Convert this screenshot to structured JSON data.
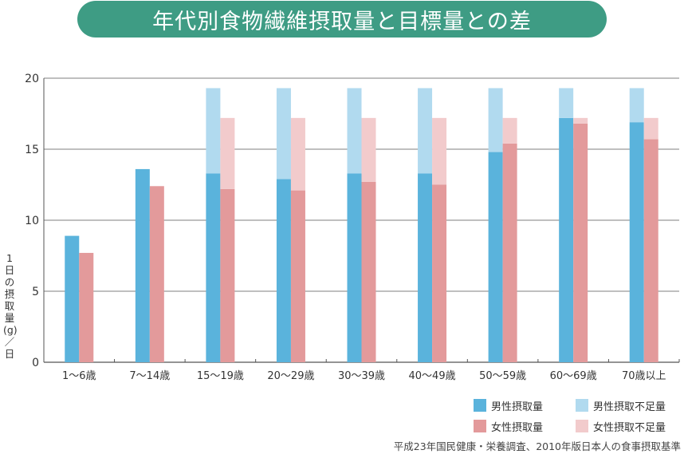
{
  "title": "年代別食物繊維摂取量と目標量との差",
  "chart_data": {
    "type": "bar",
    "title": "年代別食物繊維摂取量と目標量との差",
    "ylabel": "1日の摂取量(g)／日",
    "xlabel": "",
    "ylim": [
      0,
      20
    ],
    "yticks": [
      0,
      5,
      10,
      15,
      20
    ],
    "grid": true,
    "legend_position": "bottom-right",
    "categories": [
      "1〜6歳",
      "7〜14歳",
      "15〜19歳",
      "20〜29歳",
      "30〜39歳",
      "40〜49歳",
      "50〜59歳",
      "60〜69歳",
      "70歳以上"
    ],
    "series": [
      {
        "name": "男性摂取量",
        "color": "#5ab3dc",
        "values": [
          8.9,
          13.6,
          13.3,
          12.9,
          13.3,
          13.3,
          14.8,
          17.2,
          16.9
        ]
      },
      {
        "name": "男性摂取不足量",
        "color": "#b1daef",
        "values": [
          0,
          0,
          6.0,
          6.4,
          6.0,
          6.0,
          4.5,
          2.1,
          2.4
        ]
      },
      {
        "name": "女性摂取量",
        "color": "#e39a9b",
        "values": [
          7.7,
          12.4,
          12.2,
          12.1,
          12.7,
          12.5,
          15.4,
          16.8,
          15.7
        ]
      },
      {
        "name": "女性摂取不足量",
        "color": "#f2cbcc",
        "values": [
          0,
          0,
          5.0,
          5.1,
          4.5,
          4.7,
          1.8,
          0.4,
          1.5
        ]
      }
    ]
  },
  "source": "平成23年国民健康・栄養調査、2010年版日本人の食事摂取基準"
}
